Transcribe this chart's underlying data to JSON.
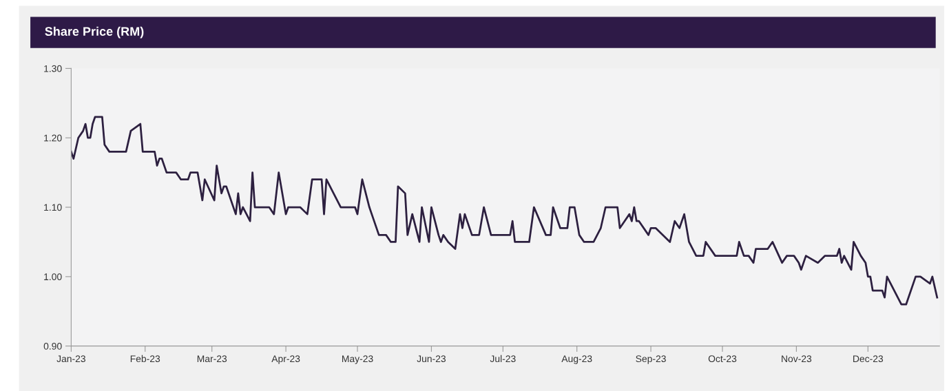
{
  "chart_data": {
    "type": "line",
    "title": "Share Price (RM)",
    "x": [
      "2023-01-01",
      "2023-01-02",
      "2023-01-04",
      "2023-01-06",
      "2023-01-07",
      "2023-01-08",
      "2023-01-09",
      "2023-01-10",
      "2023-01-11",
      "2023-01-14",
      "2023-01-15",
      "2023-01-17",
      "2023-01-24",
      "2023-01-26",
      "2023-01-30",
      "2023-01-31",
      "2023-02-05",
      "2023-02-06",
      "2023-02-07",
      "2023-02-08",
      "2023-02-10",
      "2023-02-14",
      "2023-02-16",
      "2023-02-19",
      "2023-02-20",
      "2023-02-23",
      "2023-02-25",
      "2023-02-26",
      "2023-03-02",
      "2023-03-03",
      "2023-03-05",
      "2023-03-06",
      "2023-03-07",
      "2023-03-11",
      "2023-03-12",
      "2023-03-13",
      "2023-03-14",
      "2023-03-17",
      "2023-03-18",
      "2023-03-19",
      "2023-03-25",
      "2023-03-27",
      "2023-03-29",
      "2023-04-01",
      "2023-04-02",
      "2023-04-07",
      "2023-04-10",
      "2023-04-12",
      "2023-04-16",
      "2023-04-17",
      "2023-04-18",
      "2023-04-24",
      "2023-04-30",
      "2023-05-01",
      "2023-05-03",
      "2023-05-06",
      "2023-05-07",
      "2023-05-10",
      "2023-05-13",
      "2023-05-15",
      "2023-05-17",
      "2023-05-18",
      "2023-05-21",
      "2023-05-22",
      "2023-05-24",
      "2023-05-27",
      "2023-05-28",
      "2023-05-31",
      "2023-06-01",
      "2023-06-04",
      "2023-06-05",
      "2023-06-06",
      "2023-06-08",
      "2023-06-11",
      "2023-06-13",
      "2023-06-14",
      "2023-06-15",
      "2023-06-18",
      "2023-06-21",
      "2023-06-23",
      "2023-06-26",
      "2023-07-04",
      "2023-07-05",
      "2023-07-06",
      "2023-07-12",
      "2023-07-14",
      "2023-07-19",
      "2023-07-21",
      "2023-07-22",
      "2023-07-25",
      "2023-07-28",
      "2023-07-29",
      "2023-07-31",
      "2023-08-02",
      "2023-08-04",
      "2023-08-08",
      "2023-08-11",
      "2023-08-13",
      "2023-08-18",
      "2023-08-19",
      "2023-08-21",
      "2023-08-23",
      "2023-08-24",
      "2023-08-25",
      "2023-08-26",
      "2023-08-27",
      "2023-08-31",
      "2023-09-01",
      "2023-09-03",
      "2023-09-09",
      "2023-09-11",
      "2023-09-13",
      "2023-09-15",
      "2023-09-17",
      "2023-09-20",
      "2023-09-23",
      "2023-09-24",
      "2023-09-28",
      "2023-10-07",
      "2023-10-08",
      "2023-10-10",
      "2023-10-12",
      "2023-10-14",
      "2023-10-15",
      "2023-10-20",
      "2023-10-22",
      "2023-10-26",
      "2023-10-28",
      "2023-10-31",
      "2023-11-02",
      "2023-11-03",
      "2023-11-05",
      "2023-11-10",
      "2023-11-13",
      "2023-11-18",
      "2023-11-19",
      "2023-11-20",
      "2023-11-21",
      "2023-11-24",
      "2023-11-25",
      "2023-11-28",
      "2023-11-30",
      "2023-12-01",
      "2023-12-02",
      "2023-12-03",
      "2023-12-07",
      "2023-12-08",
      "2023-12-09",
      "2023-12-15",
      "2023-12-17",
      "2023-12-21",
      "2023-12-23",
      "2023-12-27",
      "2023-12-28",
      "2023-12-30"
    ],
    "series": [
      {
        "color": "#2d2040",
        "values": [
          1.18,
          1.17,
          1.2,
          1.21,
          1.22,
          1.2,
          1.2,
          1.22,
          1.23,
          1.23,
          1.19,
          1.18,
          1.18,
          1.21,
          1.22,
          1.18,
          1.18,
          1.16,
          1.17,
          1.17,
          1.15,
          1.15,
          1.14,
          1.14,
          1.15,
          1.15,
          1.11,
          1.14,
          1.11,
          1.16,
          1.12,
          1.13,
          1.13,
          1.09,
          1.12,
          1.09,
          1.1,
          1.08,
          1.15,
          1.1,
          1.1,
          1.09,
          1.15,
          1.09,
          1.1,
          1.1,
          1.09,
          1.14,
          1.14,
          1.09,
          1.14,
          1.1,
          1.1,
          1.09,
          1.14,
          1.1,
          1.09,
          1.06,
          1.06,
          1.05,
          1.05,
          1.13,
          1.12,
          1.06,
          1.09,
          1.05,
          1.1,
          1.05,
          1.1,
          1.06,
          1.05,
          1.06,
          1.05,
          1.04,
          1.09,
          1.07,
          1.09,
          1.06,
          1.06,
          1.1,
          1.06,
          1.06,
          1.08,
          1.05,
          1.05,
          1.1,
          1.06,
          1.06,
          1.1,
          1.07,
          1.07,
          1.1,
          1.1,
          1.06,
          1.05,
          1.05,
          1.07,
          1.1,
          1.1,
          1.07,
          1.08,
          1.09,
          1.08,
          1.1,
          1.08,
          1.08,
          1.06,
          1.07,
          1.07,
          1.05,
          1.08,
          1.07,
          1.09,
          1.05,
          1.03,
          1.03,
          1.05,
          1.03,
          1.03,
          1.05,
          1.03,
          1.03,
          1.02,
          1.04,
          1.04,
          1.05,
          1.02,
          1.03,
          1.03,
          1.02,
          1.01,
          1.03,
          1.02,
          1.03,
          1.03,
          1.04,
          1.02,
          1.03,
          1.01,
          1.05,
          1.03,
          1.02,
          1.0,
          1.0,
          0.98,
          0.98,
          0.97,
          1.0,
          0.96,
          0.96,
          1.0,
          1.0,
          0.99,
          1.0,
          0.97
        ]
      }
    ],
    "xlim": [
      "2023-01-01",
      "2023-12-31"
    ],
    "xticks": [
      {
        "value": "2023-01-01",
        "label": "Jan-23"
      },
      {
        "value": "2023-02-01",
        "label": "Feb-23"
      },
      {
        "value": "2023-03-01",
        "label": "Mar-23"
      },
      {
        "value": "2023-04-01",
        "label": "Apr-23"
      },
      {
        "value": "2023-05-01",
        "label": "May-23"
      },
      {
        "value": "2023-06-01",
        "label": "Jun-23"
      },
      {
        "value": "2023-07-01",
        "label": "Jul-23"
      },
      {
        "value": "2023-08-01",
        "label": "Aug-23"
      },
      {
        "value": "2023-09-01",
        "label": "Sep-23"
      },
      {
        "value": "2023-10-01",
        "label": "Oct-23"
      },
      {
        "value": "2023-11-01",
        "label": "Nov-23"
      },
      {
        "value": "2023-12-01",
        "label": "Dec-23"
      }
    ],
    "ylim": [
      0.9,
      1.3
    ],
    "yticks": [
      {
        "value": 0.9,
        "label": "0.90"
      },
      {
        "value": 1.0,
        "label": "1.00"
      },
      {
        "value": 1.1,
        "label": "1.10"
      },
      {
        "value": 1.2,
        "label": "1.20"
      },
      {
        "value": 1.3,
        "label": "1.30"
      }
    ],
    "grid": false,
    "legend": false,
    "marker": "none",
    "line_style": "solid"
  }
}
